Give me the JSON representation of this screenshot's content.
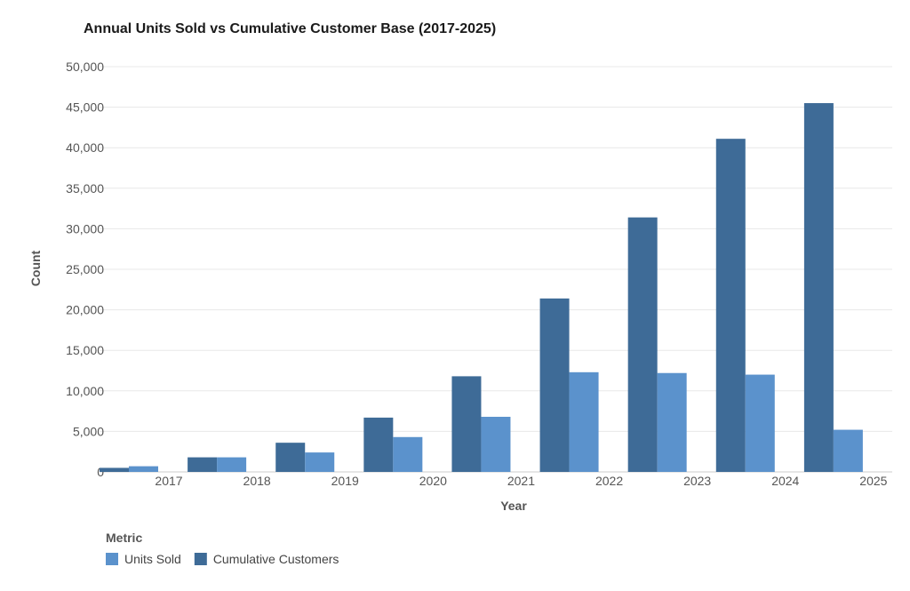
{
  "chart_data": {
    "type": "bar",
    "title": "Annual Units Sold vs Cumulative Customer Base (2017-2025)",
    "xlabel": "Year",
    "ylabel": "Count",
    "categories": [
      "2017",
      "2018",
      "2019",
      "2020",
      "2021",
      "2022",
      "2023",
      "2024",
      "2025"
    ],
    "ylim": [
      0,
      50000
    ],
    "yticks": [
      0,
      5000,
      10000,
      15000,
      20000,
      25000,
      30000,
      35000,
      40000,
      45000,
      50000
    ],
    "ytick_labels": [
      "0",
      "5,000",
      "10,000",
      "15,000",
      "20,000",
      "25,000",
      "30,000",
      "35,000",
      "40,000",
      "45,000",
      "50,000"
    ],
    "grid": true,
    "legend_title": "Metric",
    "legend_position": "bottom-left",
    "series": [
      {
        "name": "Units Sold",
        "color": "#5b92cc",
        "values": [
          700,
          1800,
          2400,
          4300,
          6800,
          12300,
          12200,
          12000,
          5200
        ]
      },
      {
        "name": "Cumulative Customers",
        "color": "#3e6b97",
        "values": [
          500,
          1800,
          3600,
          6700,
          11800,
          21400,
          31400,
          41100,
          45500
        ]
      }
    ]
  }
}
